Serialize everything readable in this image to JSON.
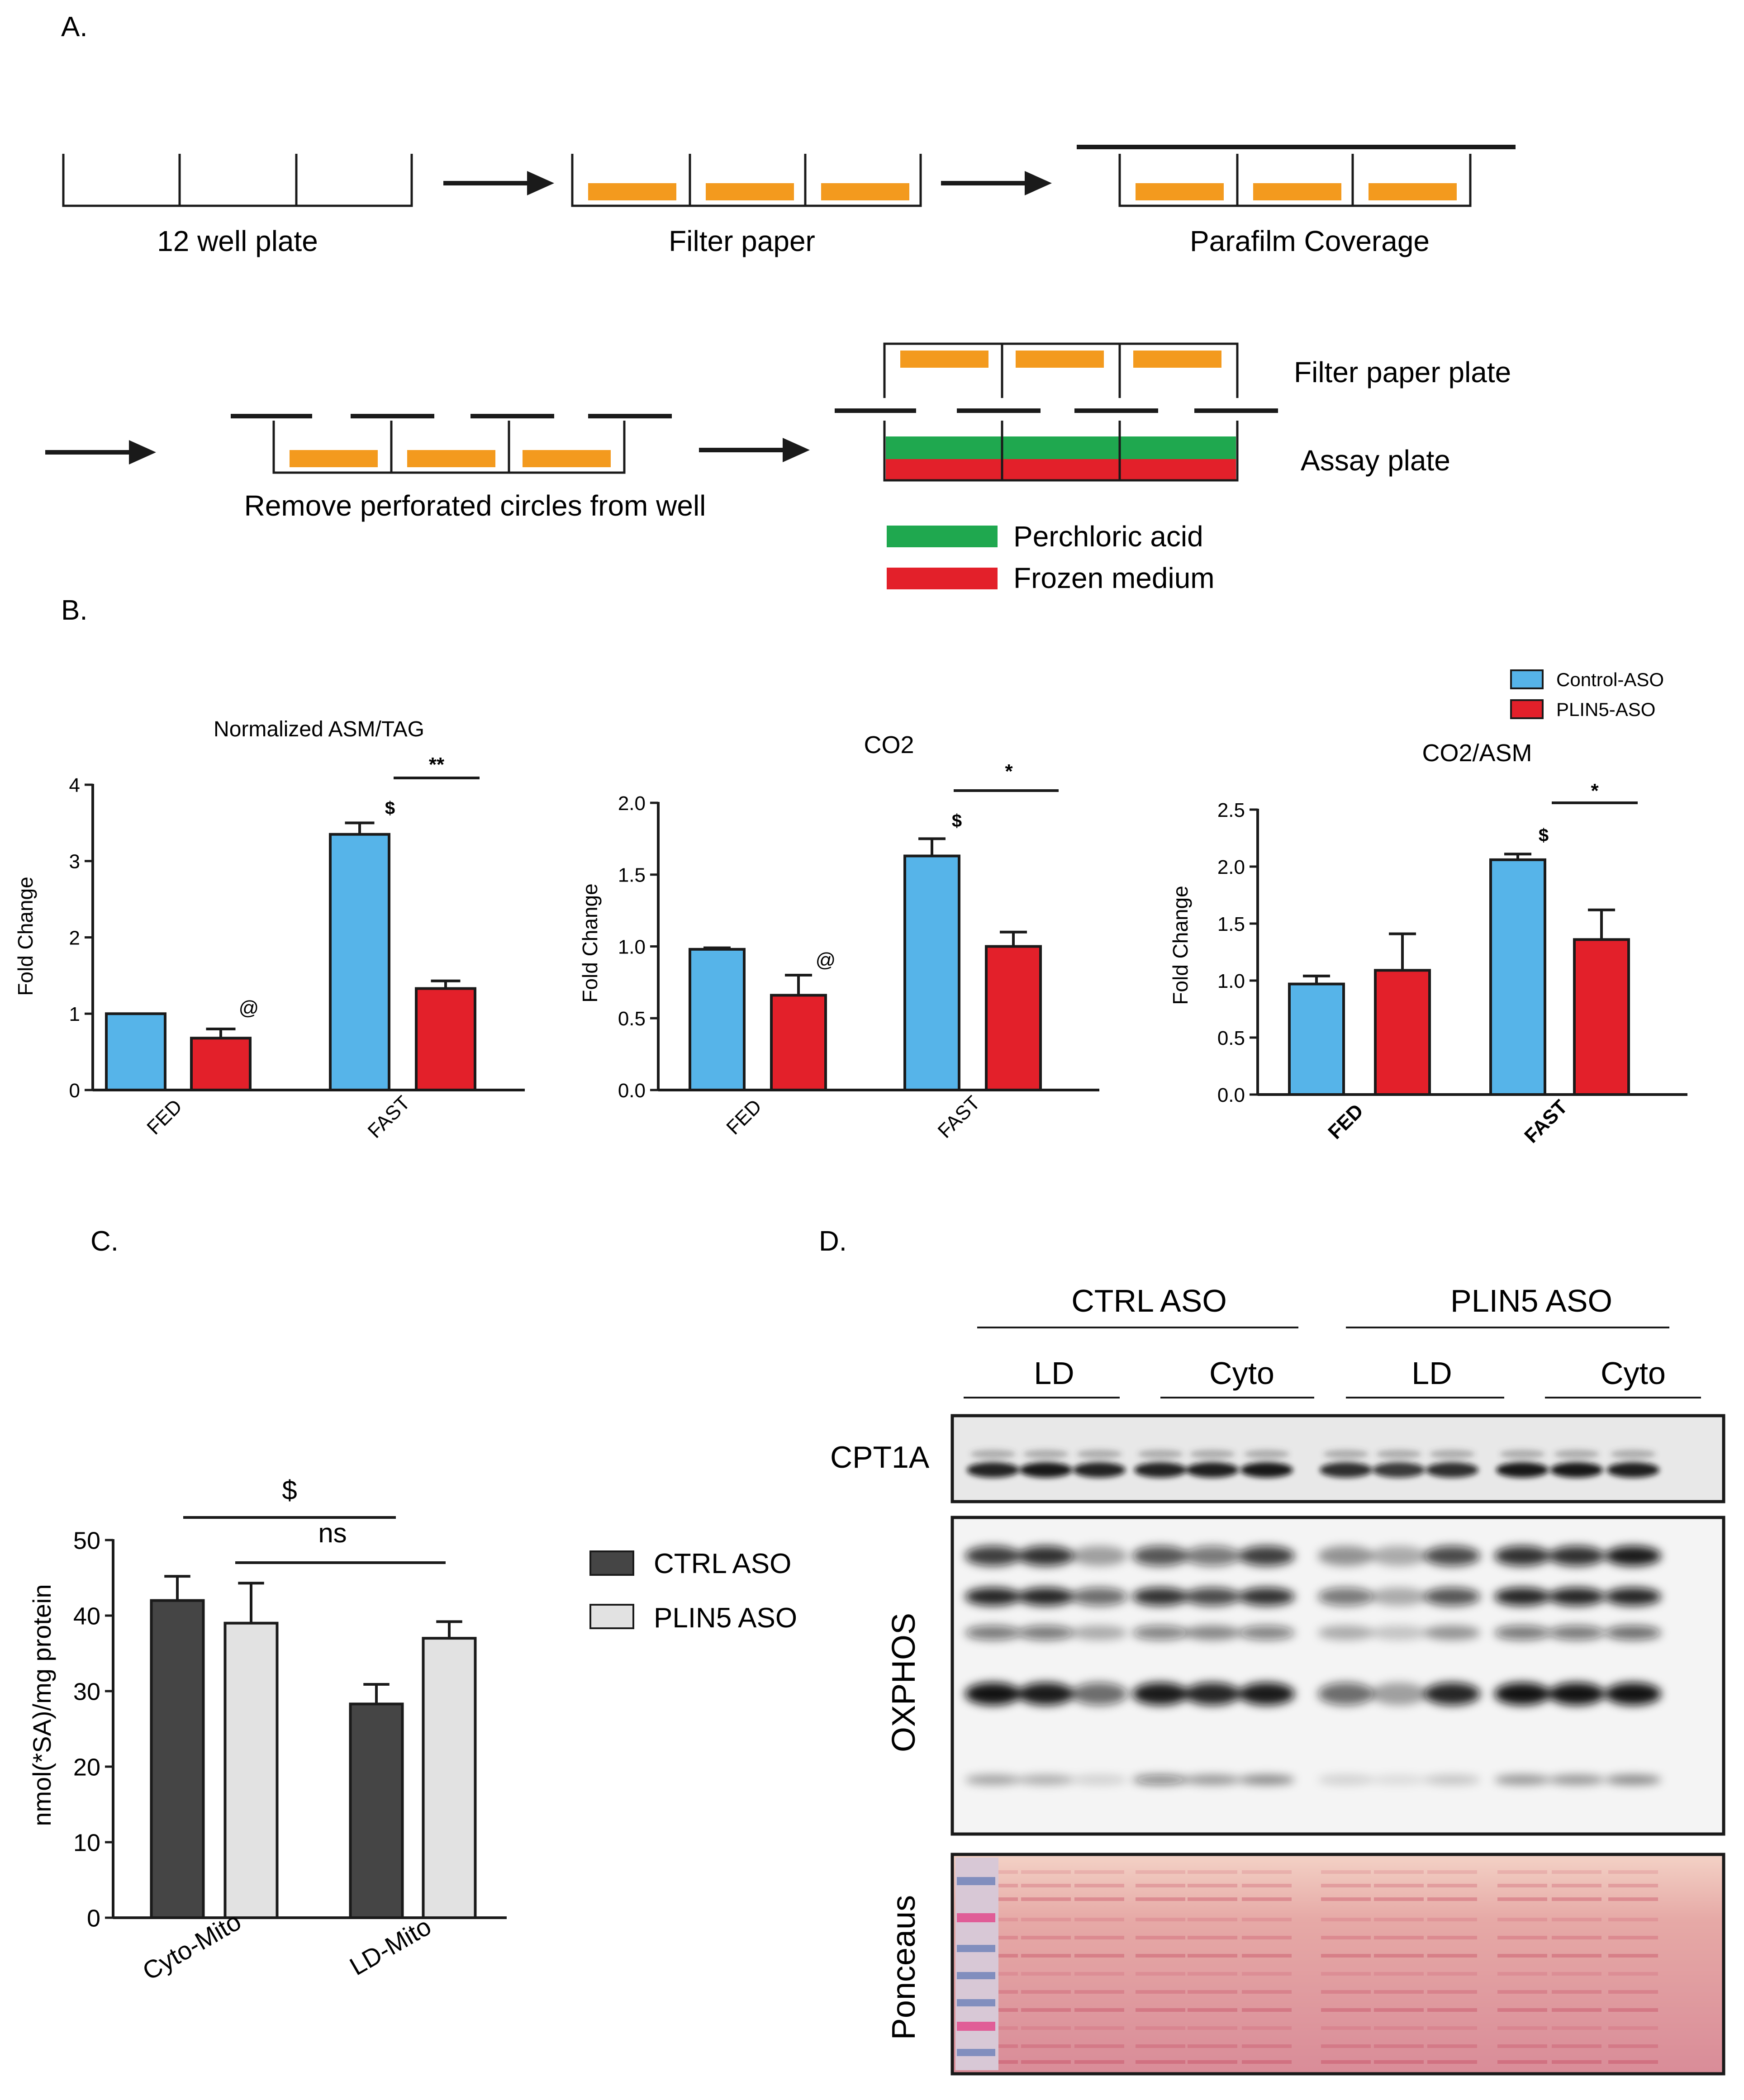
{
  "panel_a": {
    "label": "A.",
    "steps": [
      "12 well plate",
      "Filter paper",
      "Parafilm Coverage",
      "Remove perforated circles from well"
    ],
    "plate_labels": {
      "top": "Filter paper plate",
      "bottom": "Assay plate"
    },
    "legend": [
      {
        "label": "Perchloric acid",
        "color": "#1fa84f"
      },
      {
        "label": "Frozen medium",
        "color": "#e3202a"
      }
    ],
    "colors": {
      "filter": "#f39a1e",
      "line": "#1a1a1a"
    }
  },
  "panel_b": {
    "label": "B.",
    "legend": [
      {
        "label": "Control-ASO",
        "color": "#56b4e9"
      },
      {
        "label": "PLIN5-ASO",
        "color": "#e3202a"
      }
    ]
  },
  "panel_c": {
    "label": "C."
  },
  "panel_d": {
    "label": "D.",
    "groups": [
      "CTRL ASO",
      "PLIN5 ASO"
    ],
    "subgroups": [
      "LD",
      "Cyto",
      "LD",
      "Cyto"
    ],
    "blots": [
      "CPT1A",
      "OXPHOS",
      "Ponceaus"
    ]
  },
  "chart_data": [
    {
      "type": "bar",
      "title": "Normalized ASM/TAG",
      "xlabel": "",
      "ylabel": "Fold Change",
      "categories": [
        "FED",
        "FAST"
      ],
      "series": [
        {
          "name": "Control-ASO",
          "values": [
            1.0,
            3.35
          ],
          "errors": [
            0.0,
            0.15
          ]
        },
        {
          "name": "PLIN5-ASO",
          "values": [
            0.68,
            1.33
          ],
          "errors": [
            0.12,
            0.1
          ]
        }
      ],
      "ylim": [
        0,
        4
      ],
      "yticks": [
        "0",
        "1",
        "2",
        "3",
        "4"
      ],
      "annotations": [
        "@",
        "$",
        "**"
      ]
    },
    {
      "type": "bar",
      "title": "CO2",
      "xlabel": "",
      "ylabel": "Fold Change",
      "categories": [
        "FED",
        "FAST"
      ],
      "series": [
        {
          "name": "Control-ASO",
          "values": [
            0.98,
            1.63
          ],
          "errors": [
            0.01,
            0.12
          ]
        },
        {
          "name": "PLIN5-ASO",
          "values": [
            0.66,
            1.0
          ],
          "errors": [
            0.14,
            0.1
          ]
        }
      ],
      "ylim": [
        0,
        2.0
      ],
      "yticks": [
        "0.0",
        "0.5",
        "1.0",
        "1.5",
        "2.0"
      ],
      "annotations": [
        "@",
        "$",
        "*"
      ]
    },
    {
      "type": "bar",
      "title": "CO2/ASM",
      "xlabel": "",
      "ylabel": "Fold Change",
      "categories": [
        "FED",
        "FAST"
      ],
      "series": [
        {
          "name": "Control-ASO",
          "values": [
            0.97,
            2.06
          ],
          "errors": [
            0.07,
            0.05
          ]
        },
        {
          "name": "PLIN5-ASO",
          "values": [
            1.09,
            1.36
          ],
          "errors": [
            0.32,
            0.26
          ]
        }
      ],
      "ylim": [
        0,
        2.5
      ],
      "yticks": [
        "0.0",
        "0.5",
        "1.0",
        "1.5",
        "2.0",
        "2.5"
      ],
      "annotations": [
        "$",
        "*"
      ]
    },
    {
      "type": "bar",
      "title": "",
      "xlabel": "",
      "ylabel": "nmol(*SA)/mg protein",
      "categories": [
        "Cyto-Mito",
        "LD-Mito"
      ],
      "series": [
        {
          "name": "CTRL ASO",
          "values": [
            42.0,
            28.3
          ],
          "errors": [
            3.2,
            2.6
          ],
          "color": "#454545"
        },
        {
          "name": "PLIN5 ASO",
          "values": [
            39.0,
            37.0
          ],
          "errors": [
            5.3,
            2.2
          ],
          "color": "#e2e2e2"
        }
      ],
      "ylim": [
        0,
        50
      ],
      "yticks": [
        "0",
        "10",
        "20",
        "30",
        "40",
        "50"
      ],
      "annotations": [
        "$",
        "ns"
      ]
    }
  ]
}
